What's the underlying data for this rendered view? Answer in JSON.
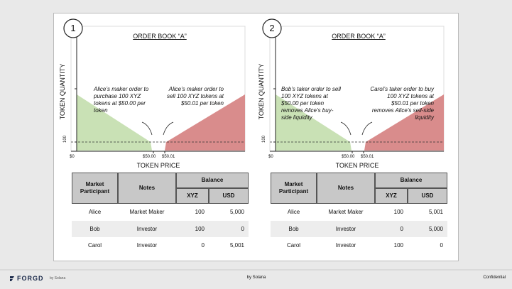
{
  "panels": [
    {
      "number": "1",
      "title": "ORDER BOOK “A”",
      "y_label": "TOKEN QUANTITY",
      "x_label": "TOKEN PRICE",
      "y_tick": "100",
      "x_ticks": [
        "$0",
        "$50.00",
        "$50.01"
      ],
      "notes": [
        "Alice’s maker order to purchase 100 XYZ tokens at $50.00 per token",
        "Alice’s maker order to sell 100 XYZ tokens at $50.01 per token"
      ],
      "table": {
        "headers": [
          "Market Participant",
          "Notes",
          "Balance",
          "XYZ",
          "USD"
        ],
        "rows": [
          [
            "Alice",
            "Market Maker",
            "100",
            "5,000"
          ],
          [
            "Bob",
            "Investor",
            "100",
            "0"
          ],
          [
            "Carol",
            "Investor",
            "0",
            "5,001"
          ]
        ]
      }
    },
    {
      "number": "2",
      "title": "ORDER BOOK “A”",
      "y_label": "TOKEN QUANTITY",
      "x_label": "TOKEN PRICE",
      "y_tick": "100",
      "x_ticks": [
        "$0",
        "$50.00",
        "$50.01"
      ],
      "notes": [
        "Bob’s taker order to sell 100 XYZ tokens at $50.00 per token removes Alice’s buy-side liquidity",
        "Carol’s taker order to buy 100 XYZ tokens at $50.01 per token removes Alice’s sell-side liquidity"
      ],
      "table": {
        "headers": [
          "Market Participant",
          "Notes",
          "Balance",
          "XYZ",
          "USD"
        ],
        "rows": [
          [
            "Alice",
            "Market Maker",
            "100",
            "5,001"
          ],
          [
            "Bob",
            "Investor",
            "0",
            "5,000"
          ],
          [
            "Carol",
            "Investor",
            "100",
            "0"
          ]
        ]
      }
    }
  ],
  "footer": {
    "brand": "FORGD",
    "brand_sub": "by Solana",
    "center": "by Solana",
    "right": "Confidential"
  }
}
